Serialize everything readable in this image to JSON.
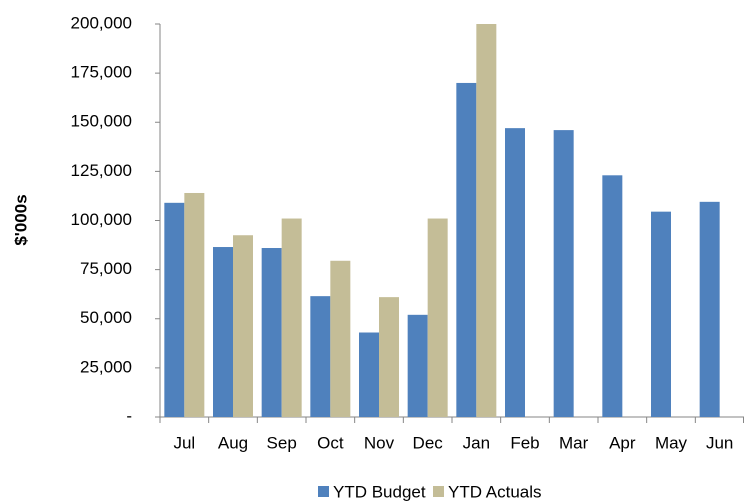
{
  "chart_data": {
    "type": "bar",
    "y_label": "$'000s",
    "categories": [
      "Jul",
      "Aug",
      "Sep",
      "Oct",
      "Nov",
      "Dec",
      "Jan",
      "Feb",
      "Mar",
      "Apr",
      "May",
      "Jun"
    ],
    "series": [
      {
        "name": "YTD Budget",
        "color": "#4f81bd",
        "values": [
          109000,
          86500,
          86000,
          61500,
          43000,
          52000,
          170000,
          147000,
          146000,
          123000,
          104500,
          109500
        ]
      },
      {
        "name": "YTD Actuals",
        "color": "#c4bd97",
        "values": [
          114000,
          92500,
          101000,
          79500,
          61000,
          101000,
          200000,
          null,
          null,
          null,
          null,
          null
        ]
      }
    ],
    "ylim": [
      0,
      200000
    ],
    "yticks": [
      {
        "value": 0,
        "label": "-"
      },
      {
        "value": 25000,
        "label": "25,000"
      },
      {
        "value": 50000,
        "label": "50,000"
      },
      {
        "value": 75000,
        "label": "75,000"
      },
      {
        "value": 100000,
        "label": "100,000"
      },
      {
        "value": 125000,
        "label": "125,000"
      },
      {
        "value": 150000,
        "label": "150,000"
      },
      {
        "value": 175000,
        "label": "175,000"
      },
      {
        "value": 200000,
        "label": "200,000"
      }
    ],
    "grid": false,
    "legend": "bottom"
  }
}
